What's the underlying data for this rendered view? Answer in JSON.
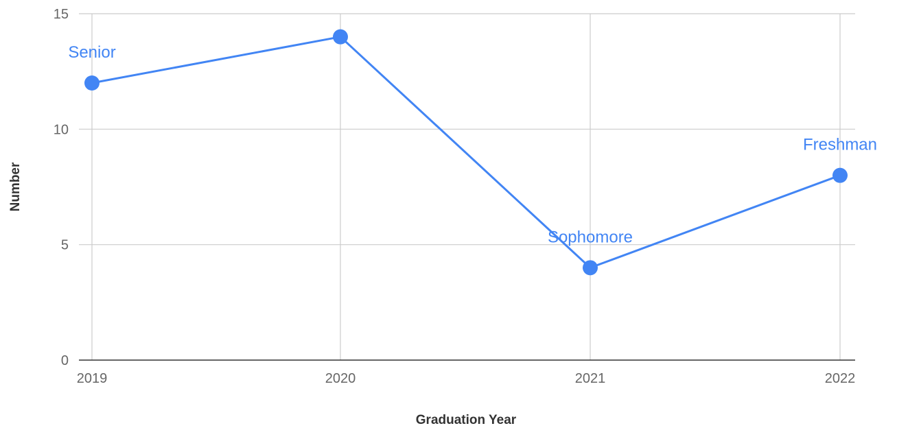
{
  "chart_data": {
    "type": "line",
    "xlabel": "Graduation Year",
    "ylabel": "Number",
    "categories": [
      "2019",
      "2020",
      "2021",
      "2022"
    ],
    "series": [
      {
        "values": [
          12,
          14,
          4,
          8
        ],
        "color": "#4285f4"
      }
    ],
    "annotations": [
      {
        "category": "2019",
        "text": "Senior"
      },
      {
        "category": "2021",
        "text": "Sophomore"
      },
      {
        "category": "2022",
        "text": "Freshman"
      }
    ],
    "ylim": [
      0,
      15
    ],
    "yticks": [
      0,
      5,
      10,
      15
    ],
    "grid": true,
    "legend": "none"
  }
}
